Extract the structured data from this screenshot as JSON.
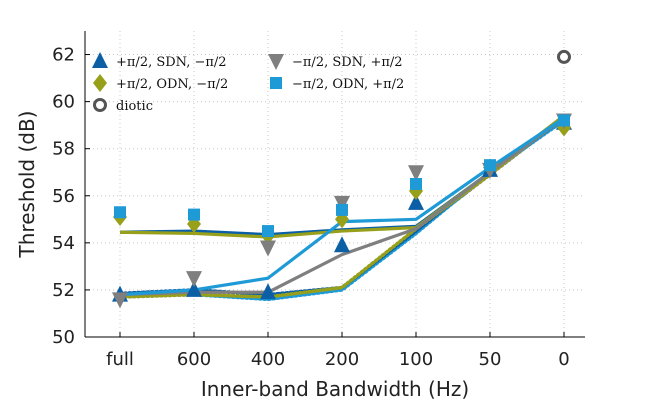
{
  "chart_data": {
    "type": "line",
    "xlabel": "Inner-band Bandwidth (Hz)",
    "ylabel": "Threshold (dB)",
    "categories": [
      "full",
      "600",
      "400",
      "200",
      "100",
      "50",
      "0"
    ],
    "ylim": [
      50,
      63
    ],
    "yticks": [
      50,
      52,
      54,
      56,
      58,
      60,
      62
    ],
    "grid": true,
    "legend_position": "top-left",
    "series": [
      {
        "name": "+π/2, SDN, −π/2",
        "marker": "triangle-up",
        "color": "#0b5fa5",
        "points": [
          51.8,
          52.0,
          51.9,
          53.9,
          55.7,
          57.1,
          59.1
        ],
        "fit": [
          51.85,
          52.0,
          51.8,
          52.1,
          54.5,
          57.0,
          59.3
        ],
        "fit_style": "dotted"
      },
      {
        "name": "+π/2, ODN, −π/2",
        "marker": "diamond",
        "color": "#98a01a",
        "points": [
          55.1,
          54.8,
          54.3,
          55.0,
          56.2,
          57.2,
          58.9
        ],
        "fit": [
          51.7,
          51.8,
          51.7,
          52.1,
          54.6,
          56.9,
          59.4
        ],
        "fit_style": "dotted"
      },
      {
        "name": "−π/2, SDN, +π/2",
        "marker": "triangle-down",
        "color": "#7f7f7f",
        "points": [
          51.6,
          52.5,
          53.8,
          55.7,
          57.0,
          57.1,
          59.2
        ],
        "fit": [
          51.8,
          51.9,
          51.9,
          53.5,
          54.6,
          57.0,
          59.3
        ],
        "fit_style": "solid"
      },
      {
        "name": "−π/2, ODN, +π/2",
        "marker": "square",
        "color": "#1e9ad6",
        "points": [
          55.3,
          55.2,
          54.5,
          55.4,
          56.5,
          57.3,
          59.2
        ],
        "fit": [
          51.8,
          52.0,
          52.5,
          54.9,
          55.0,
          57.2,
          59.3
        ],
        "fit_style": "solid"
      }
    ],
    "extra_fits": [
      {
        "name": "SDN solid fit",
        "color": "#0b5fa5",
        "values": [
          54.45,
          54.5,
          54.35,
          54.55,
          54.7,
          57.0,
          59.3
        ]
      },
      {
        "name": "ODN solid fit",
        "color": "#98a01a",
        "values": [
          54.45,
          54.4,
          54.25,
          54.5,
          54.65,
          57.0,
          59.4
        ]
      },
      {
        "name": "grey dotted fit",
        "color": "#7f7f7f",
        "values": [
          51.7,
          51.8,
          51.7,
          52.1,
          54.5,
          56.9,
          59.3
        ]
      },
      {
        "name": "light blue dotted fit",
        "color": "#1e9ad6",
        "values": [
          51.8,
          51.8,
          51.6,
          52.0,
          54.4,
          57.0,
          59.2
        ]
      }
    ],
    "diotic": {
      "name": "diotic",
      "marker": "circle-open",
      "color": "#555555",
      "x": "0",
      "y": 61.9
    }
  }
}
